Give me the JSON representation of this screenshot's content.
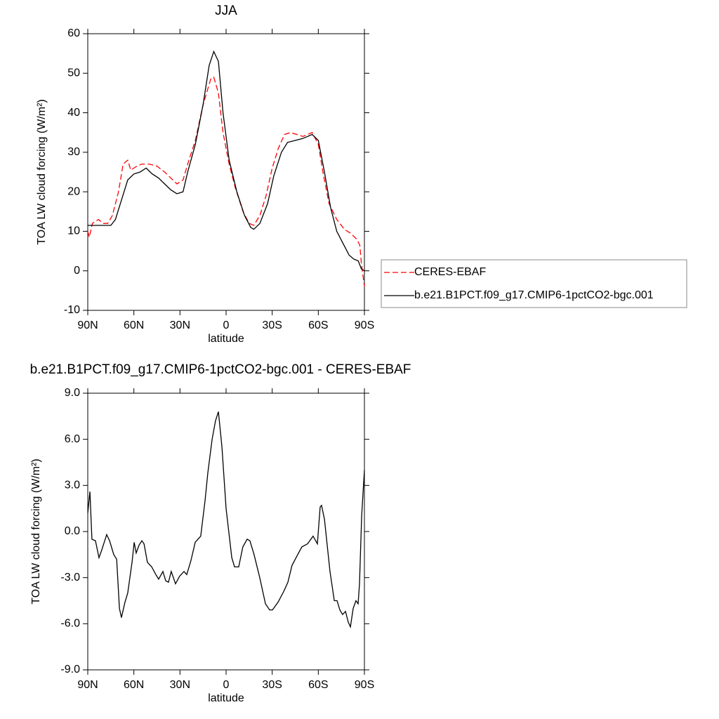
{
  "chart_data": [
    {
      "type": "line",
      "title": "JJA",
      "x_label": "latitude",
      "y_label": "TOA LW cloud forcing (W/m²)",
      "xlim": [
        90,
        -90
      ],
      "xticks": [
        {
          "value": 90,
          "label": "90N"
        },
        {
          "value": 60,
          "label": "60N"
        },
        {
          "value": 30,
          "label": "30N"
        },
        0,
        {
          "value": -30,
          "label": "30S"
        },
        {
          "value": -60,
          "label": "60S"
        },
        {
          "value": -90,
          "label": "90S"
        }
      ],
      "ylim": [
        -10,
        60
      ],
      "yticks": [
        -10,
        0,
        10,
        20,
        30,
        40,
        50,
        60
      ],
      "legend": "right",
      "series": [
        {
          "name": "CERES-EBAF",
          "color": "#ff0000",
          "line_style": "dashed",
          "x": [
            90,
            89,
            87,
            83,
            80,
            77,
            74,
            70,
            67,
            64,
            62,
            58,
            55,
            50,
            45,
            40,
            36,
            32,
            28,
            25,
            20,
            15,
            10,
            8,
            5,
            2,
            -2,
            -6,
            -11,
            -15,
            -18,
            -22,
            -26,
            -30,
            -34,
            -38,
            -42,
            -46,
            -50,
            -56,
            -60,
            -63,
            -67,
            -72,
            -77,
            -81,
            -85,
            -87,
            -88,
            -90
          ],
          "values": [
            10,
            8.5,
            12,
            13,
            12,
            12,
            14,
            20,
            27,
            28,
            25.5,
            26.5,
            27,
            27,
            26.5,
            25,
            23.5,
            22,
            23,
            27,
            33,
            42,
            48.5,
            49,
            45,
            35,
            27,
            21,
            15,
            12,
            11.5,
            14,
            19,
            26,
            31,
            34.5,
            35,
            34.5,
            34,
            35,
            32,
            25,
            17,
            13,
            10.5,
            9.5,
            8,
            6.5,
            2,
            -4
          ]
        },
        {
          "name": "b.e21.B1PCT.f09_g17.CMIP6-1pctCO2-bgc.001",
          "color": "#000000",
          "line_style": "solid",
          "x": [
            90,
            80,
            75,
            72,
            68,
            64,
            60,
            56,
            52,
            48,
            44,
            40,
            36,
            32,
            28,
            25,
            20,
            15,
            11,
            8,
            5,
            2,
            -2,
            -7,
            -12,
            -16,
            -18,
            -22,
            -27,
            -31,
            -36,
            -40,
            -45,
            -50,
            -56,
            -60,
            -64,
            -68,
            -72,
            -76,
            -80,
            -83,
            -86,
            -88,
            -90
          ],
          "values": [
            11.5,
            11.5,
            11.5,
            13,
            18,
            23,
            24.5,
            25,
            26,
            24.5,
            23.5,
            22,
            20.5,
            19.5,
            20,
            25,
            32,
            42,
            52,
            55.5,
            53,
            40,
            28,
            20,
            14,
            11,
            10.5,
            12,
            17,
            24,
            30,
            32.5,
            33,
            33.5,
            34.5,
            33,
            25,
            16,
            10,
            7,
            4,
            3,
            2.5,
            0.5,
            0
          ]
        }
      ]
    },
    {
      "type": "line",
      "title": "b.e21.B1PCT.f09_g17.CMIP6-1pctCO2-bgc.001 - CERES-EBAF",
      "x_label": "latitude",
      "y_label": "TOA LW cloud forcing (W/m²)",
      "xlim": [
        90,
        -90
      ],
      "xticks": [
        {
          "value": 90,
          "label": "90N"
        },
        {
          "value": 60,
          "label": "60N"
        },
        {
          "value": 30,
          "label": "30N"
        },
        0,
        {
          "value": -30,
          "label": "30S"
        },
        {
          "value": -60,
          "label": "60S"
        },
        {
          "value": -90,
          "label": "90S"
        }
      ],
      "ylim": [
        -9,
        9
      ],
      "yticks": [
        {
          "value": -9,
          "label": "-9.0"
        },
        {
          "value": -6,
          "label": "-6.0"
        },
        {
          "value": -3,
          "label": "-3.0"
        },
        {
          "value": 0,
          "label": "0.0"
        },
        {
          "value": 3,
          "label": "3.0"
        },
        {
          "value": 6,
          "label": "6.0"
        },
        {
          "value": 9,
          "label": "9.0"
        }
      ],
      "series": [
        {
          "color": "#000000",
          "line_style": "solid",
          "x": [
            90,
            88.6,
            87.3,
            85.0,
            82.7,
            80.9,
            77.7,
            75.8,
            73.1,
            71.2,
            69.4,
            68.1,
            65.8,
            64.0,
            61.2,
            59.8,
            58.5,
            56.7,
            54.8,
            53.4,
            51.2,
            48.4,
            45.7,
            43.9,
            41.1,
            39.3,
            37.5,
            35.7,
            32.9,
            30.2,
            27.4,
            25.6,
            22.9,
            20.1,
            16.5,
            13.7,
            11.9,
            9.1,
            6.9,
            5.0,
            2.7,
            0,
            -3.7,
            -5.5,
            -8.2,
            -10.9,
            -13.7,
            -15.5,
            -18.2,
            -21.9,
            -25.6,
            -28.3,
            -30.2,
            -33.8,
            -37.5,
            -40.2,
            -42.9,
            -46.6,
            -49.3,
            -53.0,
            -56.6,
            -59.4,
            -61.2,
            -62.1,
            -64.0,
            -67.6,
            -70.4,
            -72.2,
            -74.0,
            -75.8,
            -77.7,
            -79.5,
            -80.9,
            -82.7,
            -84.5,
            -85.9,
            -86.8,
            -88.2,
            -90
          ],
          "values": [
            1.2,
            2.6,
            -0.5,
            -0.6,
            -1.7,
            -1.2,
            -0.2,
            -0.6,
            -1.5,
            -1.8,
            -5.0,
            -5.6,
            -4.6,
            -4.0,
            -2.0,
            -0.7,
            -1.4,
            -0.9,
            -0.6,
            -0.8,
            -2.0,
            -2.3,
            -2.8,
            -3.1,
            -2.6,
            -3.2,
            -3.3,
            -2.6,
            -3.4,
            -2.9,
            -2.6,
            -2.8,
            -1.9,
            -0.7,
            -0.3,
            2.0,
            3.8,
            6.0,
            7.2,
            7.8,
            5.5,
            1.5,
            -1.7,
            -2.3,
            -2.3,
            -1.0,
            -0.5,
            -0.6,
            -1.5,
            -3.0,
            -4.7,
            -5.1,
            -5.1,
            -4.6,
            -3.9,
            -3.3,
            -2.2,
            -1.5,
            -1.0,
            -0.8,
            -0.3,
            -0.8,
            1.6,
            1.7,
            0.8,
            -2.6,
            -4.5,
            -4.5,
            -5.1,
            -5.4,
            -5.2,
            -5.9,
            -6.2,
            -5.0,
            -4.5,
            -4.7,
            -3.4,
            1.0,
            4.0
          ]
        }
      ]
    }
  ]
}
